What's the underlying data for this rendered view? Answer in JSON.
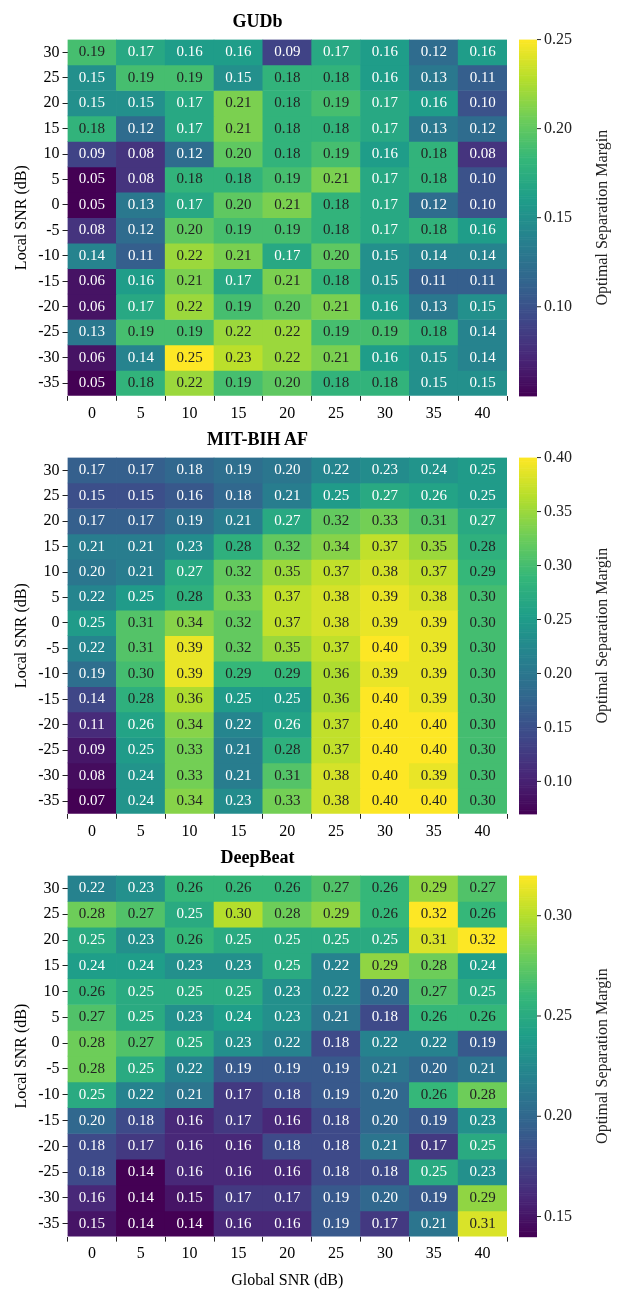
{
  "chart_data": [
    {
      "type": "heatmap",
      "title": "GUDb",
      "ylabel": "Local SNR (dB)",
      "clabel": "Optimal Separation Margin",
      "categories": [
        "0",
        "5",
        "10",
        "15",
        "20",
        "25",
        "30",
        "35",
        "40"
      ],
      "y_categories": [
        "30",
        "25",
        "20",
        "15",
        "10",
        "5",
        "0",
        "-5",
        "-10",
        "-15",
        "-20",
        "-25",
        "-30",
        "-35"
      ],
      "cells": [
        [
          0.19,
          0.17,
          0.16,
          0.16,
          0.09,
          0.17,
          0.16,
          0.12,
          0.16
        ],
        [
          0.15,
          0.19,
          0.19,
          0.15,
          0.18,
          0.18,
          0.16,
          0.13,
          0.11
        ],
        [
          0.15,
          0.15,
          0.17,
          0.21,
          0.18,
          0.19,
          0.17,
          0.16,
          0.1
        ],
        [
          0.18,
          0.12,
          0.17,
          0.21,
          0.18,
          0.18,
          0.17,
          0.13,
          0.12
        ],
        [
          0.09,
          0.08,
          0.12,
          0.2,
          0.18,
          0.19,
          0.16,
          0.18,
          0.08
        ],
        [
          0.05,
          0.08,
          0.18,
          0.18,
          0.19,
          0.21,
          0.17,
          0.18,
          0.1
        ],
        [
          0.05,
          0.13,
          0.17,
          0.2,
          0.21,
          0.18,
          0.17,
          0.12,
          0.1
        ],
        [
          0.08,
          0.12,
          0.2,
          0.19,
          0.19,
          0.18,
          0.17,
          0.18,
          0.16
        ],
        [
          0.14,
          0.11,
          0.22,
          0.21,
          0.17,
          0.2,
          0.15,
          0.14,
          0.14
        ],
        [
          0.06,
          0.16,
          0.21,
          0.17,
          0.21,
          0.18,
          0.15,
          0.11,
          0.11
        ],
        [
          0.06,
          0.17,
          0.22,
          0.19,
          0.2,
          0.21,
          0.16,
          0.13,
          0.15
        ],
        [
          0.13,
          0.19,
          0.19,
          0.22,
          0.22,
          0.19,
          0.19,
          0.18,
          0.14
        ],
        [
          0.06,
          0.14,
          0.25,
          0.23,
          0.22,
          0.21,
          0.16,
          0.15,
          0.14
        ],
        [
          0.05,
          0.18,
          0.22,
          0.19,
          0.2,
          0.18,
          0.18,
          0.15,
          0.15
        ]
      ],
      "cell_labels": [
        [
          "0.19",
          "0.17",
          "0.16",
          "0.16",
          "0.09",
          "0.17",
          "0.16",
          "0.12",
          "0.16"
        ],
        [
          "0.15",
          "0.19",
          "0.19",
          "0.15",
          "0.18",
          "0.18",
          "0.16",
          "0.13",
          "0.11"
        ],
        [
          "0.15",
          "0.15",
          "0.17",
          "0.21",
          "0.18",
          "0.19",
          "0.17",
          "0.16",
          "0.10"
        ],
        [
          "0.18",
          "0.12",
          "0.17",
          "0.21",
          "0.18",
          "0.18",
          "0.17",
          "0.13",
          "0.12"
        ],
        [
          "0.09",
          "0.08",
          "0.12",
          "0.20",
          "0.18",
          "0.19",
          "0.16",
          "0.18",
          "0.08"
        ],
        [
          "0.05",
          "0.08",
          "0.18",
          "0.18",
          "0.19",
          "0.21",
          "0.17",
          "0.18",
          "0.10"
        ],
        [
          "0.05",
          "0.13",
          "0.17",
          "0.20",
          "0.21",
          "0.18",
          "0.17",
          "0.12",
          "0.10"
        ],
        [
          "0.08",
          "0.12",
          "0.20",
          "0.19",
          "0.19",
          "0.18",
          "0.17",
          "0.18",
          "0.16"
        ],
        [
          "0.14",
          "0.11",
          "0.22",
          "0.21",
          "0.17",
          "0.20",
          "0.15",
          "0.14",
          "0.14"
        ],
        [
          "0.06",
          "0.16",
          "0.21",
          "0.17",
          "0.21",
          "0.18",
          "0.15",
          "0.11",
          "0.11"
        ],
        [
          "0.06",
          "0.17",
          "0.22",
          "0.19",
          "0.20",
          "0.21",
          "0.16",
          "0.13",
          "0.15"
        ],
        [
          "0.13",
          "0.19",
          "0.19",
          "0.22",
          "0.22",
          "0.19",
          "0.19",
          "0.18",
          "0.14"
        ],
        [
          "0.06",
          "0.14",
          "0.25",
          "0.23",
          "0.22",
          "0.21",
          "0.16",
          "0.15",
          "0.14"
        ],
        [
          "0.05",
          "0.18",
          "0.22",
          "0.19",
          "0.20",
          "0.18",
          "0.18",
          "0.15",
          "0.15"
        ]
      ],
      "clim": [
        0.05,
        0.25
      ],
      "cticks": [
        {
          "value": 0.1,
          "label": "0.10"
        },
        0.15,
        {
          "value": 0.2,
          "label": "0.20"
        },
        0.25
      ]
    },
    {
      "type": "heatmap",
      "title": "MIT-BIH AF",
      "ylabel": "Local SNR (dB)",
      "clabel": "Optimal Separation Margin",
      "categories": [
        "0",
        "5",
        "10",
        "15",
        "20",
        "25",
        "30",
        "35",
        "40"
      ],
      "y_categories": [
        "30",
        "25",
        "20",
        "15",
        "10",
        "5",
        "0",
        "-5",
        "-10",
        "-15",
        "-20",
        "-25",
        "-30",
        "-35"
      ],
      "cells": [
        [
          0.17,
          0.17,
          0.18,
          0.19,
          0.2,
          0.22,
          0.23,
          0.24,
          0.25
        ],
        [
          0.15,
          0.15,
          0.16,
          0.18,
          0.21,
          0.25,
          0.27,
          0.26,
          0.25
        ],
        [
          0.17,
          0.17,
          0.19,
          0.21,
          0.27,
          0.32,
          0.33,
          0.31,
          0.27
        ],
        [
          0.21,
          0.21,
          0.23,
          0.28,
          0.32,
          0.34,
          0.37,
          0.35,
          0.28
        ],
        [
          0.2,
          0.21,
          0.27,
          0.32,
          0.35,
          0.37,
          0.38,
          0.37,
          0.29
        ],
        [
          0.22,
          0.25,
          0.28,
          0.33,
          0.37,
          0.38,
          0.39,
          0.38,
          0.3
        ],
        [
          0.25,
          0.31,
          0.34,
          0.32,
          0.37,
          0.38,
          0.39,
          0.39,
          0.3
        ],
        [
          0.22,
          0.31,
          0.39,
          0.32,
          0.35,
          0.37,
          0.4,
          0.39,
          0.3
        ],
        [
          0.19,
          0.3,
          0.39,
          0.29,
          0.29,
          0.36,
          0.39,
          0.39,
          0.3
        ],
        [
          0.14,
          0.28,
          0.36,
          0.25,
          0.25,
          0.36,
          0.4,
          0.39,
          0.3
        ],
        [
          0.11,
          0.26,
          0.34,
          0.22,
          0.26,
          0.37,
          0.4,
          0.4,
          0.3
        ],
        [
          0.09,
          0.25,
          0.33,
          0.21,
          0.28,
          0.37,
          0.4,
          0.4,
          0.3
        ],
        [
          0.08,
          0.24,
          0.33,
          0.21,
          0.31,
          0.38,
          0.4,
          0.39,
          0.3
        ],
        [
          0.07,
          0.24,
          0.34,
          0.23,
          0.33,
          0.38,
          0.4,
          0.4,
          0.3
        ]
      ],
      "cell_labels": [
        [
          "0.17",
          "0.17",
          "0.18",
          "0.19",
          "0.20",
          "0.22",
          "0.23",
          "0.24",
          "0.25"
        ],
        [
          "0.15",
          "0.15",
          "0.16",
          "0.18",
          "0.21",
          "0.25",
          "0.27",
          "0.26",
          "0.25"
        ],
        [
          "0.17",
          "0.17",
          "0.19",
          "0.21",
          "0.27",
          "0.32",
          "0.33",
          "0.31",
          "0.27"
        ],
        [
          "0.21",
          "0.21",
          "0.23",
          "0.28",
          "0.32",
          "0.34",
          "0.37",
          "0.35",
          "0.28"
        ],
        [
          "0.20",
          "0.21",
          "0.27",
          "0.32",
          "0.35",
          "0.37",
          "0.38",
          "0.37",
          "0.29"
        ],
        [
          "0.22",
          "0.25",
          "0.28",
          "0.33",
          "0.37",
          "0.38",
          "0.39",
          "0.38",
          "0.30"
        ],
        [
          "0.25",
          "0.31",
          "0.34",
          "0.32",
          "0.37",
          "0.38",
          "0.39",
          "0.39",
          "0.30"
        ],
        [
          "0.22",
          "0.31",
          "0.39",
          "0.32",
          "0.35",
          "0.37",
          "0.40",
          "0.39",
          "0.30"
        ],
        [
          "0.19",
          "0.30",
          "0.39",
          "0.29",
          "0.29",
          "0.36",
          "0.39",
          "0.39",
          "0.30"
        ],
        [
          "0.14",
          "0.28",
          "0.36",
          "0.25",
          "0.25",
          "0.36",
          "0.40",
          "0.39",
          "0.30"
        ],
        [
          "0.11",
          "0.26",
          "0.34",
          "0.22",
          "0.26",
          "0.37",
          "0.40",
          "0.40",
          "0.30"
        ],
        [
          "0.09",
          "0.25",
          "0.33",
          "0.21",
          "0.28",
          "0.37",
          "0.40",
          "0.40",
          "0.30"
        ],
        [
          "0.08",
          "0.24",
          "0.33",
          "0.21",
          "0.31",
          "0.38",
          "0.40",
          "0.39",
          "0.30"
        ],
        [
          "0.07",
          "0.24",
          "0.34",
          "0.23",
          "0.33",
          "0.38",
          "0.40",
          "0.40",
          "0.30"
        ]
      ],
      "clim": [
        0.07,
        0.4
      ],
      "cticks": [
        {
          "value": 0.1,
          "label": "0.10"
        },
        0.15,
        {
          "value": 0.2,
          "label": "0.20"
        },
        0.25,
        {
          "value": 0.3,
          "label": "0.30"
        },
        0.35,
        {
          "value": 0.4,
          "label": "0.40"
        }
      ]
    },
    {
      "type": "heatmap",
      "title": "DeepBeat",
      "xlabel": "Global SNR (dB)",
      "ylabel": "Local SNR (dB)",
      "clabel": "Optimal Separation Margin",
      "categories": [
        "0",
        "5",
        "10",
        "15",
        "20",
        "25",
        "30",
        "35",
        "40"
      ],
      "y_categories": [
        "30",
        "25",
        "20",
        "15",
        "10",
        "5",
        "0",
        "-5",
        "-10",
        "-15",
        "-20",
        "-25",
        "-30",
        "-35"
      ],
      "cells": [
        [
          0.22,
          0.23,
          0.26,
          0.26,
          0.26,
          0.27,
          0.26,
          0.29,
          0.27
        ],
        [
          0.28,
          0.27,
          0.25,
          0.3,
          0.28,
          0.29,
          0.26,
          0.32,
          0.26
        ],
        [
          0.25,
          0.23,
          0.26,
          0.25,
          0.25,
          0.25,
          0.25,
          0.31,
          0.32
        ],
        [
          0.24,
          0.24,
          0.23,
          0.23,
          0.25,
          0.22,
          0.29,
          0.28,
          0.24
        ],
        [
          0.26,
          0.25,
          0.25,
          0.25,
          0.23,
          0.22,
          0.2,
          0.27,
          0.25
        ],
        [
          0.27,
          0.25,
          0.23,
          0.24,
          0.23,
          0.21,
          0.18,
          0.26,
          0.26
        ],
        [
          0.28,
          0.27,
          0.25,
          0.23,
          0.22,
          0.18,
          0.22,
          0.22,
          0.19
        ],
        [
          0.28,
          0.25,
          0.22,
          0.19,
          0.19,
          0.19,
          0.21,
          0.2,
          0.21
        ],
        [
          0.25,
          0.22,
          0.21,
          0.17,
          0.18,
          0.19,
          0.2,
          0.26,
          0.28
        ],
        [
          0.2,
          0.18,
          0.16,
          0.17,
          0.16,
          0.18,
          0.2,
          0.19,
          0.23
        ],
        [
          0.18,
          0.17,
          0.16,
          0.16,
          0.18,
          0.18,
          0.21,
          0.17,
          0.25
        ],
        [
          0.18,
          0.14,
          0.16,
          0.16,
          0.16,
          0.18,
          0.18,
          0.25,
          0.23
        ],
        [
          0.16,
          0.14,
          0.15,
          0.17,
          0.17,
          0.19,
          0.2,
          0.19,
          0.29
        ],
        [
          0.15,
          0.14,
          0.14,
          0.16,
          0.16,
          0.19,
          0.17,
          0.21,
          0.31
        ]
      ],
      "cell_labels": [
        [
          "0.22",
          "0.23",
          "0.26",
          "0.26",
          "0.26",
          "0.27",
          "0.26",
          "0.29",
          "0.27"
        ],
        [
          "0.28",
          "0.27",
          "0.25",
          "0.30",
          "0.28",
          "0.29",
          "0.26",
          "0.32",
          "0.26"
        ],
        [
          "0.25",
          "0.23",
          "0.26",
          "0.25",
          "0.25",
          "0.25",
          "0.25",
          "0.31",
          "0.32"
        ],
        [
          "0.24",
          "0.24",
          "0.23",
          "0.23",
          "0.25",
          "0.22",
          "0.29",
          "0.28",
          "0.24"
        ],
        [
          "0.26",
          "0.25",
          "0.25",
          "0.25",
          "0.23",
          "0.22",
          "0.20",
          "0.27",
          "0.25"
        ],
        [
          "0.27",
          "0.25",
          "0.23",
          "0.24",
          "0.23",
          "0.21",
          "0.18",
          "0.26",
          "0.26"
        ],
        [
          "0.28",
          "0.27",
          "0.25",
          "0.23",
          "0.22",
          "0.18",
          "0.22",
          "0.22",
          "0.19"
        ],
        [
          "0.28",
          "0.25",
          "0.22",
          "0.19",
          "0.19",
          "0.19",
          "0.21",
          "0.20",
          "0.21"
        ],
        [
          "0.25",
          "0.22",
          "0.21",
          "0.17",
          "0.18",
          "0.19",
          "0.20",
          "0.26",
          "0.28"
        ],
        [
          "0.20",
          "0.18",
          "0.16",
          "0.17",
          "0.16",
          "0.18",
          "0.20",
          "0.19",
          "0.23"
        ],
        [
          "0.18",
          "0.17",
          "0.16",
          "0.16",
          "0.18",
          "0.18",
          "0.21",
          "0.17",
          "0.25"
        ],
        [
          "0.18",
          "0.14",
          "0.16",
          "0.16",
          "0.16",
          "0.18",
          "0.18",
          "0.25",
          "0.23"
        ],
        [
          "0.16",
          "0.14",
          "0.15",
          "0.17",
          "0.17",
          "0.19",
          "0.20",
          "0.19",
          "0.29"
        ],
        [
          "0.15",
          "0.14",
          "0.14",
          "0.16",
          "0.16",
          "0.19",
          "0.17",
          "0.21",
          "0.31"
        ]
      ],
      "clim": [
        0.14,
        0.32
      ],
      "cticks": [
        0.15,
        {
          "value": 0.2,
          "label": "0.20"
        },
        0.25,
        {
          "value": 0.3,
          "label": "0.30"
        }
      ]
    }
  ]
}
